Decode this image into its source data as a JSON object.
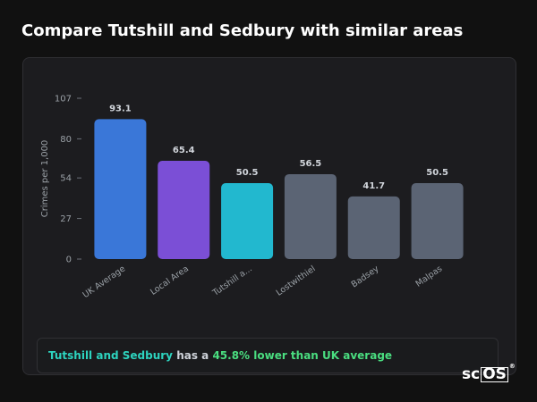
{
  "header": {
    "title": "Compare Tutshill and Sedbury with similar areas"
  },
  "chart_data": {
    "type": "bar",
    "title": "",
    "xlabel": "",
    "ylabel": "Crimes per 1,000",
    "categories": [
      "UK Average",
      "Local Area",
      "Tutshill a...",
      "Lostwithiel",
      "Badsey",
      "Malpas"
    ],
    "values": [
      93.1,
      65.4,
      50.5,
      56.5,
      41.7,
      50.5
    ],
    "data_labels": [
      "93.1",
      "65.4",
      "50.5",
      "56.5",
      "41.7",
      "50.5"
    ],
    "yticks": [
      0,
      27,
      54,
      80,
      107
    ],
    "ylim": [
      0,
      107
    ],
    "grid": false,
    "colors": [
      "#3a77d8",
      "#7b4fd6",
      "#22b8cf",
      "#5b6474",
      "#5b6474",
      "#5b6474"
    ]
  },
  "summary": {
    "area": "Tutshill and Sedbury",
    "middle": " has a ",
    "comparison": "45.8% lower than UK average"
  },
  "logo": {
    "text_a": "sc",
    "text_b": "OS",
    "mark": "®"
  }
}
